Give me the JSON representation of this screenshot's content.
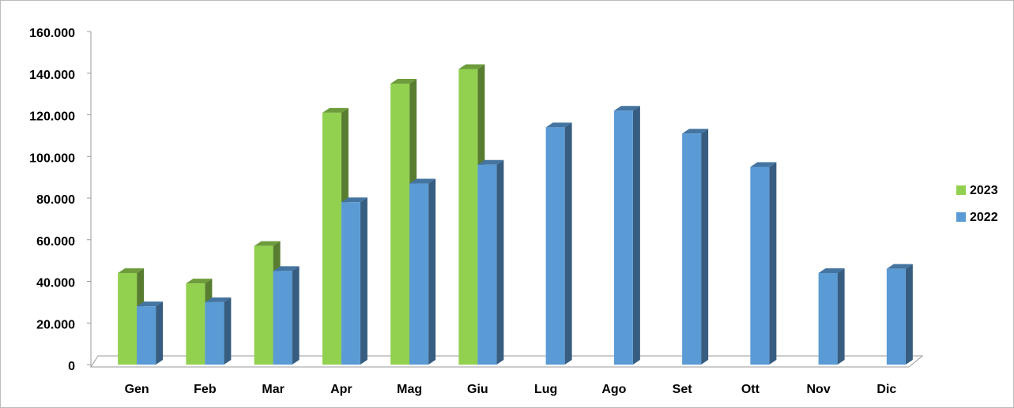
{
  "chart_data": {
    "type": "bar",
    "categories": [
      "Gen",
      "Feb",
      "Mar",
      "Apr",
      "Mag",
      "Giu",
      "Lug",
      "Ago",
      "Set",
      "Ott",
      "Nov",
      "Dic"
    ],
    "series": [
      {
        "name": "2023",
        "color": "#92d050",
        "values": [
          44000,
          39000,
          57000,
          121000,
          135000,
          142000,
          null,
          null,
          null,
          null,
          null,
          null
        ]
      },
      {
        "name": "2022",
        "color": "#5b9bd5",
        "values": [
          28000,
          30000,
          45000,
          78000,
          87000,
          96000,
          114000,
          122000,
          111000,
          95000,
          44000,
          46000
        ]
      }
    ],
    "ylim": [
      0,
      160000
    ],
    "yticks": [
      0,
      {
        "value": 20000,
        "label": "20.000"
      },
      {
        "value": 40000,
        "label": "40.000"
      },
      {
        "value": 60000,
        "label": "60.000"
      },
      {
        "value": 80000,
        "label": "80.000"
      },
      {
        "value": 100000,
        "label": "100.000"
      },
      {
        "value": 120000,
        "label": "120.000"
      },
      {
        "value": 140000,
        "label": "140.000"
      },
      {
        "value": 160000,
        "label": "160.000"
      }
    ],
    "grid": false,
    "legend": "right"
  }
}
